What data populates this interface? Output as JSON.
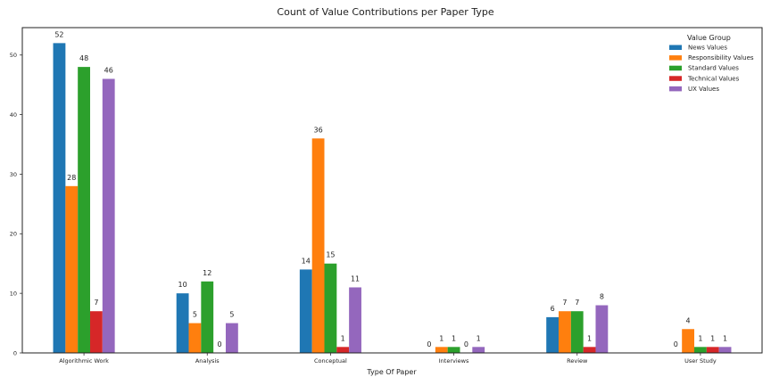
{
  "chart_data": {
    "type": "bar",
    "title": "Count of Value Contributions per Paper Type",
    "xlabel": "Type Of Paper",
    "ylabel": "",
    "ylim": [
      0,
      54.6
    ],
    "yticks": [
      0,
      10,
      20,
      30,
      40,
      50
    ],
    "grid": false,
    "legend": {
      "title": "Value Group",
      "placement": "top-right"
    },
    "categories": [
      "Algorithmic Work",
      "Analysis",
      "Conceptual",
      "Interviews",
      "Review",
      "User Study"
    ],
    "series": [
      {
        "name": "News Values",
        "color": "#1f77b4",
        "values": [
          52,
          10,
          14,
          0,
          6,
          0
        ]
      },
      {
        "name": "Responsibility Values",
        "color": "#ff7f0e",
        "values": [
          28,
          5,
          36,
          1,
          7,
          4
        ]
      },
      {
        "name": "Standard Values",
        "color": "#2ca02c",
        "values": [
          48,
          12,
          15,
          1,
          7,
          1
        ]
      },
      {
        "name": "Technical Values",
        "color": "#d62728",
        "values": [
          7,
          0,
          1,
          0,
          1,
          1
        ]
      },
      {
        "name": "UX Values",
        "color": "#9467bd",
        "values": [
          46,
          5,
          11,
          1,
          8,
          1
        ]
      }
    ]
  }
}
